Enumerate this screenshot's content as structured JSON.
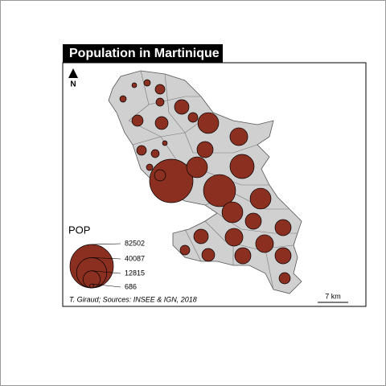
{
  "chart_data": {
    "type": "proportional-symbol-map",
    "title": "Population in Martinique",
    "legend_title": "POP",
    "legend_values": [
      82502,
      40087,
      12815,
      686
    ],
    "values": [
      82502,
      45000,
      19000,
      11300,
      19000,
      13800,
      25500,
      19000,
      19000,
      11300,
      11300,
      13800,
      13800,
      11300,
      11300,
      5500,
      9200,
      7200,
      4100,
      9200,
      4100,
      2800,
      1800,
      1000,
      1800,
      5500,
      7200,
      4100,
      4100,
      2800,
      1000,
      1800,
      5500
    ],
    "color": "#8b3021",
    "north": "N",
    "scale_label": "7 km",
    "credits": "T. Giraud; Sources: INSEE & IGN, 2018"
  }
}
